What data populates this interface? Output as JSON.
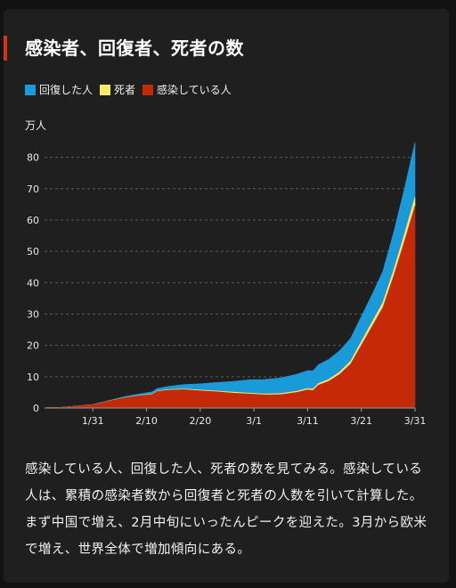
{
  "title": "感染者、回復者、死者の数",
  "unit_label": "万人",
  "description": "感染している人、回復した人、死者の数を見てみる。感染している人は、累積の感染者数から回復者と死者の人数を引いて計算した。まず中国で増え、2月中旬にいったんピークを迎えた。3月から欧米で増え、世界全体で増加傾向にある。",
  "legend": [
    {
      "label": "回復した人",
      "color": "#1a9ad8"
    },
    {
      "label": "死者",
      "color": "#f5ea6a"
    },
    {
      "label": "感染している人",
      "color": "#c42a08"
    }
  ],
  "chart_data": {
    "type": "area",
    "stacked": true,
    "ylabel": "万人",
    "ylim": [
      0,
      85
    ],
    "yticks": [
      0,
      10,
      20,
      30,
      40,
      50,
      60,
      70,
      80
    ],
    "grid": true,
    "legend_position": "top-left",
    "x_ticks": [
      {
        "label": "1/31",
        "day": 9
      },
      {
        "label": "2/10",
        "day": 19
      },
      {
        "label": "2/20",
        "day": 29
      },
      {
        "label": "3/1",
        "day": 39
      },
      {
        "label": "3/11",
        "day": 49
      },
      {
        "label": "3/21",
        "day": 59
      },
      {
        "label": "3/31",
        "day": 69
      }
    ],
    "series": [
      {
        "name": "感染している人",
        "color": "#c42a08",
        "points": [
          [
            0,
            0.06
          ],
          [
            3,
            0.2
          ],
          [
            6,
            0.6
          ],
          [
            9,
            1.1
          ],
          [
            12,
            2.2
          ],
          [
            15,
            3.3
          ],
          [
            18,
            4.0
          ],
          [
            20,
            4.3
          ],
          [
            21,
            5.3
          ],
          [
            23,
            5.7
          ],
          [
            26,
            5.9
          ],
          [
            29,
            5.5
          ],
          [
            32,
            5.2
          ],
          [
            35,
            4.8
          ],
          [
            38,
            4.5
          ],
          [
            41,
            4.2
          ],
          [
            44,
            4.3
          ],
          [
            47,
            5.0
          ],
          [
            49,
            5.8
          ],
          [
            50,
            5.6
          ],
          [
            51,
            7.3
          ],
          [
            53,
            8.6
          ],
          [
            55,
            10.8
          ],
          [
            57,
            14
          ],
          [
            59,
            20
          ],
          [
            61,
            26
          ],
          [
            63,
            32
          ],
          [
            65,
            42
          ],
          [
            67,
            53
          ],
          [
            69,
            64.5
          ]
        ]
      },
      {
        "name": "死者",
        "color": "#f5ea6a",
        "points": [
          [
            0,
            0
          ],
          [
            3,
            0
          ],
          [
            6,
            0.01
          ],
          [
            9,
            0.02
          ],
          [
            12,
            0.04
          ],
          [
            15,
            0.07
          ],
          [
            18,
            0.1
          ],
          [
            20,
            0.13
          ],
          [
            21,
            0.14
          ],
          [
            23,
            0.17
          ],
          [
            26,
            0.21
          ],
          [
            29,
            0.24
          ],
          [
            32,
            0.27
          ],
          [
            35,
            0.29
          ],
          [
            38,
            0.3
          ],
          [
            41,
            0.31
          ],
          [
            44,
            0.33
          ],
          [
            47,
            0.38
          ],
          [
            49,
            0.45
          ],
          [
            50,
            0.48
          ],
          [
            51,
            0.52
          ],
          [
            53,
            0.6
          ],
          [
            55,
            0.75
          ],
          [
            57,
            0.95
          ],
          [
            59,
            1.2
          ],
          [
            61,
            1.4
          ],
          [
            63,
            1.6
          ],
          [
            65,
            1.9
          ],
          [
            67,
            2.3
          ],
          [
            69,
            2.8
          ]
        ]
      },
      {
        "name": "回復した人",
        "color": "#1a9ad8",
        "points": [
          [
            0,
            0
          ],
          [
            3,
            0.01
          ],
          [
            6,
            0.02
          ],
          [
            9,
            0.05
          ],
          [
            12,
            0.15
          ],
          [
            15,
            0.3
          ],
          [
            18,
            0.5
          ],
          [
            20,
            0.7
          ],
          [
            21,
            0.8
          ],
          [
            23,
            1.0
          ],
          [
            26,
            1.4
          ],
          [
            29,
            2.0
          ],
          [
            32,
            2.7
          ],
          [
            35,
            3.4
          ],
          [
            38,
            4.2
          ],
          [
            41,
            4.6
          ],
          [
            44,
            5.0
          ],
          [
            47,
            5.4
          ],
          [
            49,
            5.7
          ],
          [
            50,
            5.8
          ],
          [
            51,
            6.0
          ],
          [
            53,
            6.4
          ],
          [
            55,
            6.8
          ],
          [
            57,
            7.3
          ],
          [
            59,
            8.0
          ],
          [
            61,
            8.8
          ],
          [
            63,
            10.0
          ],
          [
            65,
            12.0
          ],
          [
            67,
            14.5
          ],
          [
            69,
            17.5
          ]
        ]
      }
    ]
  }
}
